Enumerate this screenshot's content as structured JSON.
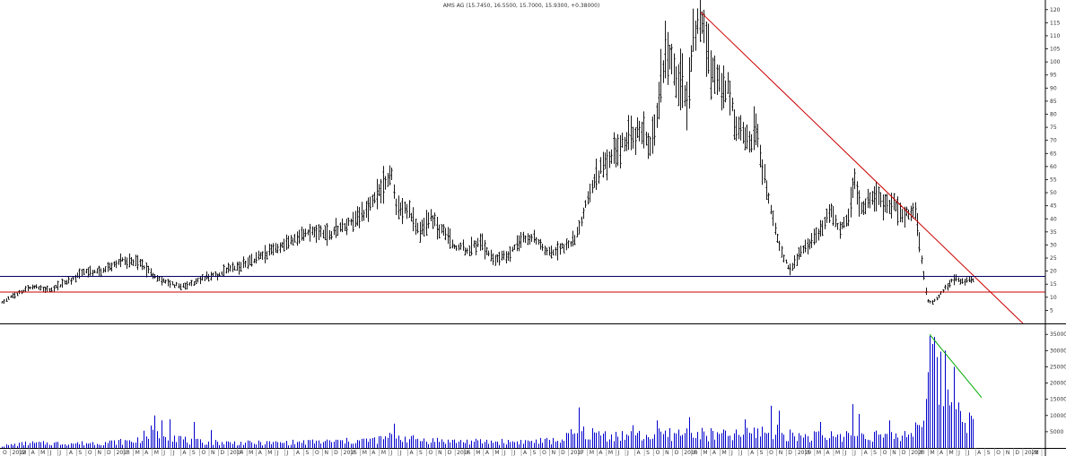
{
  "chart_data": {
    "type": "ohlc",
    "title": "AMS AG (15.7450, 16.5500, 15.7000, 15.9300, +0.38000)",
    "price_axis": {
      "range": [
        0,
        123
      ],
      "ticks": [
        5,
        10,
        15,
        20,
        25,
        30,
        35,
        40,
        45,
        50,
        55,
        60,
        65,
        70,
        75,
        80,
        85,
        90,
        95,
        100,
        105,
        110,
        115,
        120
      ],
      "tick_labels": [
        "5",
        "10",
        "15",
        "20",
        "25",
        "30",
        "35",
        "40",
        "45",
        "50",
        "55",
        "60",
        "65",
        "70",
        "75",
        "80",
        "85",
        "90",
        "95",
        "100",
        "105",
        "110",
        "115",
        "120"
      ]
    },
    "volume_axis": {
      "range": [
        0,
        37000
      ],
      "ticks": [
        5000,
        10000,
        15000,
        20000,
        25000,
        30000,
        35000
      ],
      "tick_labels": [
        "5000",
        "10000",
        "15000",
        "20000",
        "25000",
        "30000",
        "35000"
      ]
    },
    "time_axis": {
      "labels": [
        "O",
        "2012",
        "M",
        "A",
        "M",
        "J",
        "J",
        "A",
        "S",
        "O",
        "N",
        "D",
        "2013",
        "F",
        "M",
        "A",
        "M",
        "J",
        "J",
        "A",
        "S",
        "O",
        "N",
        "D",
        "2014",
        "F",
        "M",
        "A",
        "M",
        "J",
        "J",
        "A",
        "S",
        "O",
        "N",
        "D",
        "2015",
        "F",
        "M",
        "A",
        "M",
        "J",
        "J",
        "A",
        "S",
        "O",
        "N",
        "D",
        "2016",
        "F",
        "M",
        "A",
        "M",
        "J",
        "J",
        "A",
        "S",
        "O",
        "N",
        "D",
        "2017",
        "F",
        "M",
        "A",
        "M",
        "J",
        "J",
        "A",
        "S",
        "O",
        "N",
        "D",
        "2018",
        "F",
        "M",
        "A",
        "M",
        "J",
        "J",
        "A",
        "S",
        "O",
        "N",
        "D",
        "2019",
        "F",
        "M",
        "A",
        "M",
        "J",
        "J",
        "A",
        "S",
        "O",
        "N",
        "D",
        "2020",
        "F",
        "M",
        "A",
        "M",
        "J",
        "J",
        "A",
        "S",
        "O",
        "N",
        "D",
        "2021",
        "M"
      ]
    },
    "price_anchors": [
      [
        0,
        8
      ],
      [
        12,
        10
      ],
      [
        35,
        14
      ],
      [
        55,
        13
      ],
      [
        75,
        16
      ],
      [
        95,
        20
      ],
      [
        115,
        20
      ],
      [
        135,
        24
      ],
      [
        155,
        23
      ],
      [
        175,
        17
      ],
      [
        190,
        15
      ],
      [
        205,
        14
      ],
      [
        225,
        17
      ],
      [
        245,
        19
      ],
      [
        265,
        22
      ],
      [
        285,
        25
      ],
      [
        305,
        28
      ],
      [
        325,
        32
      ],
      [
        345,
        35
      ],
      [
        365,
        34
      ],
      [
        385,
        37
      ],
      [
        395,
        40
      ],
      [
        410,
        44
      ],
      [
        425,
        52
      ],
      [
        436,
        58
      ],
      [
        440,
        45
      ],
      [
        455,
        43
      ],
      [
        465,
        36
      ],
      [
        480,
        40
      ],
      [
        495,
        35
      ],
      [
        505,
        30
      ],
      [
        520,
        28
      ],
      [
        535,
        31
      ],
      [
        550,
        24
      ],
      [
        565,
        26
      ],
      [
        580,
        32
      ],
      [
        595,
        33
      ],
      [
        610,
        27
      ],
      [
        625,
        29
      ],
      [
        640,
        32
      ],
      [
        650,
        42
      ],
      [
        660,
        52
      ],
      [
        670,
        60
      ],
      [
        685,
        66
      ],
      [
        700,
        70
      ],
      [
        715,
        74
      ],
      [
        725,
        66
      ],
      [
        732,
        80
      ],
      [
        738,
        97
      ],
      [
        745,
        103
      ],
      [
        752,
        95
      ],
      [
        758,
        92
      ],
      [
        766,
        82
      ],
      [
        772,
        110
      ],
      [
        781,
        118
      ],
      [
        790,
        103
      ],
      [
        797,
        96
      ],
      [
        805,
        87
      ],
      [
        812,
        92
      ],
      [
        820,
        73
      ],
      [
        828,
        72
      ],
      [
        835,
        70
      ],
      [
        842,
        75
      ],
      [
        850,
        58
      ],
      [
        858,
        45
      ],
      [
        865,
        33
      ],
      [
        873,
        25
      ],
      [
        880,
        20
      ],
      [
        888,
        25
      ],
      [
        898,
        30
      ],
      [
        908,
        33
      ],
      [
        918,
        38
      ],
      [
        925,
        44
      ],
      [
        935,
        35
      ],
      [
        945,
        42
      ],
      [
        952,
        55
      ],
      [
        960,
        43
      ],
      [
        968,
        47
      ],
      [
        978,
        48
      ],
      [
        988,
        45
      ],
      [
        998,
        46
      ],
      [
        1005,
        41
      ],
      [
        1012,
        42
      ],
      [
        1020,
        43
      ],
      [
        1025,
        30
      ],
      [
        1029,
        18
      ],
      [
        1033,
        9
      ],
      [
        1038,
        8
      ],
      [
        1045,
        10
      ],
      [
        1055,
        14
      ],
      [
        1062,
        17
      ],
      [
        1072,
        16
      ],
      [
        1080,
        17
      ],
      [
        1086,
        16
      ]
    ],
    "volume_anchors": [
      [
        0,
        600
      ],
      [
        30,
        1500
      ],
      [
        60,
        1500
      ],
      [
        90,
        1500
      ],
      [
        120,
        1800
      ],
      [
        150,
        2200
      ],
      [
        172,
        5500
      ],
      [
        190,
        4500
      ],
      [
        210,
        2000
      ],
      [
        240,
        1800
      ],
      [
        270,
        1600
      ],
      [
        300,
        1600
      ],
      [
        330,
        1800
      ],
      [
        360,
        2000
      ],
      [
        390,
        2200
      ],
      [
        420,
        2600
      ],
      [
        440,
        3800
      ],
      [
        460,
        2800
      ],
      [
        480,
        2500
      ],
      [
        500,
        2200
      ],
      [
        530,
        2000
      ],
      [
        560,
        2000
      ],
      [
        590,
        2100
      ],
      [
        620,
        2300
      ],
      [
        645,
        5000
      ],
      [
        660,
        4500
      ],
      [
        690,
        4000
      ],
      [
        720,
        3800
      ],
      [
        740,
        4300
      ],
      [
        770,
        4800
      ],
      [
        790,
        4200
      ],
      [
        820,
        4000
      ],
      [
        850,
        5500
      ],
      [
        870,
        4800
      ],
      [
        890,
        3800
      ],
      [
        920,
        3600
      ],
      [
        950,
        4500
      ],
      [
        975,
        4200
      ],
      [
        1000,
        3500
      ],
      [
        1015,
        5000
      ],
      [
        1025,
        9000
      ],
      [
        1032,
        18000
      ],
      [
        1038,
        28000
      ],
      [
        1046,
        25000
      ],
      [
        1052,
        19000
      ],
      [
        1060,
        16000
      ],
      [
        1066,
        12000
      ],
      [
        1074,
        10500
      ],
      [
        1080,
        9000
      ],
      [
        1086,
        7000
      ]
    ],
    "volume_spikes": [
      [
        172,
        10000
      ],
      [
        180,
        8500
      ],
      [
        190,
        8800
      ],
      [
        215,
        8000
      ],
      [
        235,
        5500
      ],
      [
        438,
        7500
      ],
      [
        645,
        12500
      ],
      [
        705,
        7000
      ],
      [
        732,
        8500
      ],
      [
        768,
        9500
      ],
      [
        830,
        8800
      ],
      [
        858,
        13000
      ],
      [
        868,
        11500
      ],
      [
        915,
        8000
      ],
      [
        950,
        13500
      ],
      [
        958,
        10500
      ],
      [
        990,
        8500
      ],
      [
        1036,
        34500
      ],
      [
        1044,
        28000
      ],
      [
        1053,
        30000
      ],
      [
        1057,
        18000
      ],
      [
        1064,
        25000
      ],
      [
        1069,
        14000
      ]
    ],
    "price_lines": [
      {
        "type": "trendline",
        "color": "#cc0000",
        "from": [
          781,
          119
        ],
        "to": [
          1140,
          0
        ]
      },
      {
        "type": "horizontal",
        "color": "#000066",
        "value": 18
      },
      {
        "type": "horizontal",
        "color": "#cc0000",
        "value": 12
      }
    ],
    "volume_lines": [
      {
        "type": "trendline",
        "color": "#00aa00",
        "from": [
          1036,
          35000
        ],
        "to": [
          1094,
          15500
        ]
      }
    ],
    "colors": {
      "bars": "#000000",
      "volume": "#0000cc",
      "axis_line": "#000000",
      "grid_tick": "#888888"
    }
  }
}
